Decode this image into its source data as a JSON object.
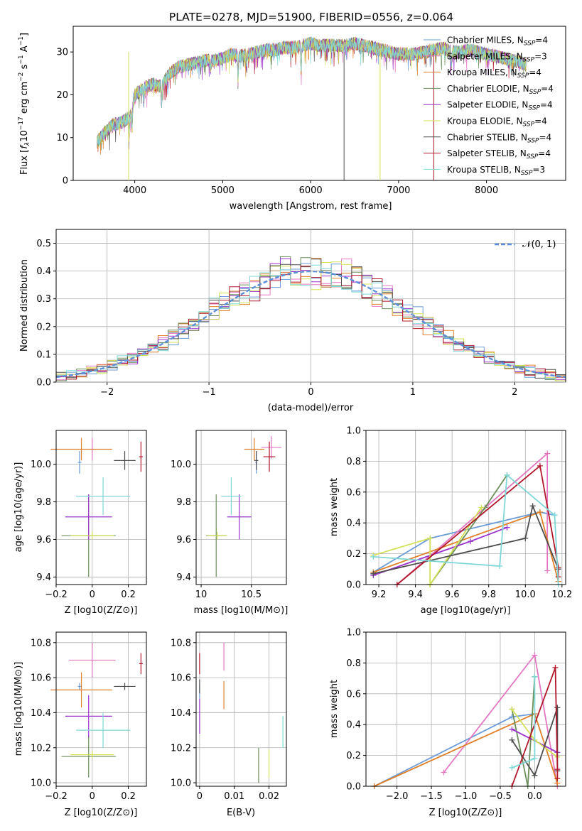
{
  "figure_title": "PLATE=0278, MJD=51900, FIBERID=0556, z=0.064",
  "colors": {
    "Chabrier MILES": "#6a9bd8",
    "Salpeter MILES": "#e377c2",
    "Kroupa MILES": "#e0802a",
    "Chabrier ELODIE": "#6b8e5a",
    "Salpeter ELODIE": "#9932cc",
    "Kroupa ELODIE": "#d4e157",
    "Chabrier STELIB": "#4d4d4d",
    "Salpeter STELIB": "#b2182b",
    "Kroupa STELIB": "#7fd7d7"
  },
  "chart_data": [
    {
      "id": "spectrum",
      "type": "line",
      "title": "PLATE=0278, MJD=51900, FIBERID=0556, z=0.064",
      "xlabel": "wavelength [Angstrom, rest frame]",
      "ylabel": "Flux [f_λ10^-17 erg cm^-2 s^-1 A^-1]",
      "xlim": [
        3300,
        8900
      ],
      "ylim": [
        0,
        36
      ],
      "xticks": [
        4000,
        5000,
        6000,
        7000,
        8000
      ],
      "yticks": [
        0,
        10,
        20,
        30
      ],
      "grid": false,
      "legend_position": "right",
      "legend": [
        {
          "name": "Chabrier MILES",
          "nssp": "4"
        },
        {
          "name": "Salpeter MILES",
          "nssp": "3"
        },
        {
          "name": "Kroupa MILES",
          "nssp": "4"
        },
        {
          "name": "Chabrier ELODIE",
          "nssp": "4"
        },
        {
          "name": "Salpeter ELODIE",
          "nssp": "4"
        },
        {
          "name": "Kroupa ELODIE",
          "nssp": "4"
        },
        {
          "name": "Chabrier STELIB",
          "nssp": "4"
        },
        {
          "name": "Salpeter STELIB",
          "nssp": "4"
        },
        {
          "name": "Kroupa STELIB",
          "nssp": "3"
        }
      ],
      "continuum": [
        [
          3570,
          9
        ],
        [
          3650,
          11
        ],
        [
          3750,
          13
        ],
        [
          3850,
          13.5
        ],
        [
          3950,
          15
        ],
        [
          4000,
          20
        ],
        [
          4100,
          21.5
        ],
        [
          4200,
          22.5
        ],
        [
          4300,
          22
        ],
        [
          4400,
          25
        ],
        [
          4500,
          26.5
        ],
        [
          4600,
          27
        ],
        [
          4700,
          27.5
        ],
        [
          4800,
          28
        ],
        [
          4900,
          28
        ],
        [
          5000,
          28.5
        ],
        [
          5100,
          29.5
        ],
        [
          5200,
          29
        ],
        [
          5300,
          29.5
        ],
        [
          5400,
          30
        ],
        [
          5500,
          30.5
        ],
        [
          5600,
          30.5
        ],
        [
          5700,
          31
        ],
        [
          5800,
          31
        ],
        [
          5900,
          31.5
        ],
        [
          6000,
          32
        ],
        [
          6100,
          31.5
        ],
        [
          6200,
          31.5
        ],
        [
          6300,
          31.5
        ],
        [
          6400,
          31.5
        ],
        [
          6500,
          32
        ],
        [
          6600,
          31.5
        ],
        [
          6700,
          31
        ],
        [
          6800,
          30.5
        ],
        [
          6900,
          30
        ],
        [
          7000,
          29.5
        ],
        [
          7100,
          29.5
        ],
        [
          7200,
          29.5
        ],
        [
          7300,
          30
        ],
        [
          7400,
          30.5
        ],
        [
          7500,
          31
        ],
        [
          7600,
          30
        ],
        [
          7700,
          30
        ],
        [
          7800,
          30.5
        ],
        [
          7900,
          30
        ],
        [
          8000,
          29.5
        ],
        [
          8100,
          29
        ],
        [
          8200,
          28.5
        ],
        [
          8300,
          28
        ],
        [
          8400,
          27.5
        ],
        [
          8450,
          27
        ]
      ],
      "absorption_lines": [
        [
          3934,
          -5
        ],
        [
          3969,
          -5
        ],
        [
          4102,
          -3
        ],
        [
          4305,
          -4
        ],
        [
          4861,
          -2
        ],
        [
          5175,
          -5
        ],
        [
          5270,
          -3
        ],
        [
          5892,
          -6
        ],
        [
          6563,
          -1
        ],
        [
          7600,
          -3
        ]
      ],
      "spikes": [
        {
          "x": 3930,
          "series": "Kroupa ELODIE"
        },
        {
          "x": 6380,
          "series": "Chabrier STELIB"
        },
        {
          "x": 6790,
          "series": "Kroupa ELODIE"
        },
        {
          "x": 7400,
          "series": "Salpeter STELIB"
        }
      ]
    },
    {
      "id": "residual_hist",
      "type": "bar",
      "xlabel": "(data-model)/error",
      "ylabel": "Normed distribution",
      "xlim": [
        -2.5,
        2.5
      ],
      "ylim": [
        0,
        0.55
      ],
      "xticks": [
        -2,
        -1,
        0,
        1,
        2
      ],
      "yticks": [
        0.0,
        0.1,
        0.2,
        0.3,
        0.4,
        0.5
      ],
      "grid": true,
      "legend_position": "top-right",
      "gaussian_label": "𝒩(0, 1)",
      "gaussian_color": "#5b8fd9",
      "bin_width": 0.1
    },
    {
      "id": "Z_age",
      "type": "scatter",
      "xlabel": "Z [log10(Z/Z⊙)]",
      "ylabel": "age [log10(age/yr)]",
      "xlim": [
        -0.2,
        0.3
      ],
      "ylim": [
        9.36,
        10.18
      ],
      "xticks": [
        -0.2,
        0.0,
        0.2
      ],
      "yticks": [
        9.4,
        9.6,
        9.8,
        10.0
      ],
      "grid": true,
      "points": [
        {
          "series": "Chabrier MILES",
          "x": -0.07,
          "y": 10.01,
          "xerr": 0.01,
          "yerr": 0.06
        },
        {
          "series": "Salpeter MILES",
          "x": 0.0,
          "y": 10.08,
          "xerr": 0.01,
          "yerr": 0.06
        },
        {
          "series": "Kroupa MILES",
          "x": -0.06,
          "y": 10.08,
          "xerr": 0.17,
          "yerr": 0.06
        },
        {
          "series": "Chabrier ELODIE",
          "x": -0.02,
          "y": 9.62,
          "xerr": 0.15,
          "yerr": 0.22
        },
        {
          "series": "Salpeter ELODIE",
          "x": -0.02,
          "y": 9.72,
          "xerr": 0.13,
          "yerr": 0.12
        },
        {
          "series": "Kroupa ELODIE",
          "x": 0.0,
          "y": 9.62,
          "xerr": 0.12,
          "yerr": 0.02
        },
        {
          "series": "Chabrier STELIB",
          "x": 0.18,
          "y": 10.02,
          "xerr": 0.06,
          "yerr": 0.05
        },
        {
          "series": "Salpeter STELIB",
          "x": 0.27,
          "y": 10.04,
          "xerr": 0.01,
          "yerr": 0.08
        },
        {
          "series": "Kroupa STELIB",
          "x": 0.06,
          "y": 9.83,
          "xerr": 0.15,
          "yerr": 0.1
        }
      ]
    },
    {
      "id": "mass_age",
      "type": "scatter",
      "xlabel": "mass [log10(M/M⊙)]",
      "ylabel": "",
      "xlim": [
        9.95,
        10.85
      ],
      "ylim": [
        9.36,
        10.18
      ],
      "xticks": [
        10.0,
        10.5
      ],
      "yticks": [
        9.4,
        9.6,
        9.8,
        10.0
      ],
      "grid": true,
      "points": [
        {
          "series": "Chabrier MILES",
          "x": 10.55,
          "y": 10.01,
          "xerr": 0.01,
          "yerr": 0.06
        },
        {
          "series": "Salpeter MILES",
          "x": 10.7,
          "y": 10.09,
          "xerr": 0.1,
          "yerr": 0.06
        },
        {
          "series": "Kroupa MILES",
          "x": 10.53,
          "y": 10.08,
          "xerr": 0.1,
          "yerr": 0.06
        },
        {
          "series": "Chabrier ELODIE",
          "x": 10.15,
          "y": 9.62,
          "xerr": 0.1,
          "yerr": 0.22
        },
        {
          "series": "Salpeter ELODIE",
          "x": 10.38,
          "y": 9.72,
          "xerr": 0.12,
          "yerr": 0.12
        },
        {
          "series": "Kroupa ELODIE",
          "x": 10.16,
          "y": 9.62,
          "xerr": 0.1,
          "yerr": 0.02
        },
        {
          "series": "Chabrier STELIB",
          "x": 10.55,
          "y": 10.02,
          "xerr": 0.02,
          "yerr": 0.05
        },
        {
          "series": "Salpeter STELIB",
          "x": 10.68,
          "y": 10.04,
          "xerr": 0.06,
          "yerr": 0.08
        },
        {
          "series": "Kroupa STELIB",
          "x": 10.3,
          "y": 9.83,
          "xerr": 0.1,
          "yerr": 0.1
        }
      ]
    },
    {
      "id": "age_weight",
      "type": "line",
      "xlabel": "age [log10(age/yr)]",
      "ylabel": "mass weight",
      "xlim": [
        9.13,
        10.22
      ],
      "ylim": [
        0,
        1.0
      ],
      "xticks": [
        9.2,
        9.4,
        9.6,
        9.8,
        10.0,
        10.2
      ],
      "yticks": [
        0.0,
        0.2,
        0.4,
        0.6,
        0.8,
        1.0
      ],
      "grid": true,
      "series": [
        {
          "name": "Chabrier MILES",
          "x": [
            9.17,
            9.48,
            10.08,
            10.16
          ],
          "y": [
            0.08,
            0.3,
            0.47,
            0.45
          ]
        },
        {
          "name": "Salpeter MILES",
          "x": [
            9.3,
            10.12,
            10.12
          ],
          "y": [
            0.0,
            0.85,
            0.09
          ]
        },
        {
          "name": "Kroupa MILES",
          "x": [
            9.17,
            10.08,
            10.18
          ],
          "y": [
            0.08,
            0.47,
            0.02
          ]
        },
        {
          "name": "Chabrier ELODIE",
          "x": [
            9.48,
            9.78,
            9.9
          ],
          "y": [
            0.0,
            0.5,
            0.71
          ]
        },
        {
          "name": "Salpeter ELODIE",
          "x": [
            9.17,
            9.7,
            9.9
          ],
          "y": [
            0.06,
            0.28,
            0.37
          ]
        },
        {
          "name": "Kroupa ELODIE",
          "x": [
            9.17,
            9.48,
            9.48,
            9.76
          ],
          "y": [
            0.19,
            0.3,
            0.0,
            0.5
          ]
        },
        {
          "name": "Chabrier STELIB",
          "x": [
            9.17,
            10.0,
            10.04,
            10.18
          ],
          "y": [
            0.07,
            0.3,
            0.51,
            0.1
          ]
        },
        {
          "name": "Salpeter STELIB",
          "x": [
            9.3,
            10.08,
            10.18,
            10.18
          ],
          "y": [
            0.0,
            0.77,
            0.11,
            0.05
          ]
        },
        {
          "name": "Kroupa STELIB",
          "x": [
            9.17,
            9.86,
            9.9,
            10.16,
            10.18
          ],
          "y": [
            0.18,
            0.12,
            0.71,
            0.45,
            0.0
          ]
        }
      ]
    },
    {
      "id": "Z_mass",
      "type": "scatter",
      "xlabel": "Z [log10(Z/Z⊙)]",
      "ylabel": "mass [log10(M/M⊙)]",
      "xlim": [
        -0.2,
        0.3
      ],
      "ylim": [
        9.98,
        10.86
      ],
      "xticks": [
        -0.2,
        0.0,
        0.2
      ],
      "yticks": [
        10.0,
        10.2,
        10.4,
        10.6,
        10.8
      ],
      "grid": true,
      "points": [
        {
          "series": "Chabrier MILES",
          "x": -0.07,
          "y": 10.55,
          "xerr": 0.01,
          "yerr": 0.02
        },
        {
          "series": "Salpeter MILES",
          "x": 0.0,
          "y": 10.7,
          "xerr": 0.13,
          "yerr": 0.1
        },
        {
          "series": "Kroupa MILES",
          "x": -0.06,
          "y": 10.53,
          "xerr": 0.17,
          "yerr": 0.1
        },
        {
          "series": "Chabrier ELODIE",
          "x": -0.02,
          "y": 10.15,
          "xerr": 0.15,
          "yerr": 0.12
        },
        {
          "series": "Salpeter ELODIE",
          "x": -0.02,
          "y": 10.38,
          "xerr": 0.13,
          "yerr": 0.12
        },
        {
          "series": "Kroupa ELODIE",
          "x": 0.0,
          "y": 10.16,
          "xerr": 0.12,
          "yerr": 0.02
        },
        {
          "series": "Chabrier STELIB",
          "x": 0.18,
          "y": 10.55,
          "xerr": 0.06,
          "yerr": 0.02
        },
        {
          "series": "Salpeter STELIB",
          "x": 0.27,
          "y": 10.68,
          "xerr": 0.01,
          "yerr": 0.06
        },
        {
          "series": "Kroupa STELIB",
          "x": 0.06,
          "y": 10.3,
          "xerr": 0.15,
          "yerr": 0.1
        }
      ]
    },
    {
      "id": "ebv_mass",
      "type": "scatter",
      "xlabel": "E(B-V)",
      "ylabel": "",
      "xlim": [
        -0.001,
        0.025
      ],
      "ylim": [
        9.98,
        10.86
      ],
      "xticks": [
        0.0,
        0.01,
        0.02
      ],
      "yticks": [
        10.0,
        10.2,
        10.4,
        10.6,
        10.8
      ],
      "grid": true,
      "points": [
        {
          "series": "Chabrier MILES",
          "x": 0.0,
          "y": 10.52,
          "xerr": 0,
          "yerr": 0.04
        },
        {
          "series": "Salpeter MILES",
          "x": 0.007,
          "y": 10.72,
          "xerr": 0,
          "yerr": 0.08
        },
        {
          "series": "Kroupa MILES",
          "x": 0.007,
          "y": 10.5,
          "xerr": 0,
          "yerr": 0.08
        },
        {
          "series": "Chabrier ELODIE",
          "x": 0.017,
          "y": 10.1,
          "xerr": 0,
          "yerr": 0.1
        },
        {
          "series": "Salpeter ELODIE",
          "x": 0.0,
          "y": 10.38,
          "xerr": 0,
          "yerr": 0.1
        },
        {
          "series": "Kroupa ELODIE",
          "x": 0.02,
          "y": 10.11,
          "xerr": 0,
          "yerr": 0.08
        },
        {
          "series": "Chabrier STELIB",
          "x": 0.0,
          "y": 10.55,
          "xerr": 0,
          "yerr": 0.04
        },
        {
          "series": "Salpeter STELIB",
          "x": 0.0,
          "y": 10.68,
          "xerr": 0,
          "yerr": 0.06
        },
        {
          "series": "Kroupa STELIB",
          "x": 0.024,
          "y": 10.29,
          "xerr": 0,
          "yerr": 0.09
        }
      ]
    },
    {
      "id": "Z_weight",
      "type": "line",
      "xlabel": "Z [log10(Z/Z⊙)]",
      "ylabel": "mass weight",
      "xlim": [
        -2.45,
        0.45
      ],
      "ylim": [
        0,
        1.0
      ],
      "xticks": [
        -2.0,
        -1.5,
        -1.0,
        -0.5,
        0.0
      ],
      "yticks": [
        0.0,
        0.2,
        0.4,
        0.6,
        0.8,
        1.0
      ],
      "grid": true,
      "series": [
        {
          "name": "Chabrier MILES",
          "x": [
            -2.33,
            -0.33,
            0.0
          ],
          "y": [
            0.0,
            0.45,
            0.47
          ]
        },
        {
          "name": "Salpeter MILES",
          "x": [
            -1.32,
            0.0,
            0.33
          ],
          "y": [
            0.09,
            0.85,
            0.0
          ]
        },
        {
          "name": "Kroupa MILES",
          "x": [
            -2.33,
            0.0,
            0.33
          ],
          "y": [
            0.0,
            0.47,
            0.02
          ]
        },
        {
          "name": "Chabrier ELODIE",
          "x": [
            -0.33,
            -0.1,
            0.0
          ],
          "y": [
            0.5,
            0.0,
            0.71
          ]
        },
        {
          "name": "Salpeter ELODIE",
          "x": [
            -0.33,
            0.33
          ],
          "y": [
            0.37,
            0.22
          ]
        },
        {
          "name": "Kroupa ELODIE",
          "x": [
            -0.33,
            0.0,
            0.33
          ],
          "y": [
            0.5,
            0.3,
            0.19
          ]
        },
        {
          "name": "Chabrier STELIB",
          "x": [
            -0.33,
            0.0,
            0.33,
            0.33
          ],
          "y": [
            0.3,
            0.07,
            0.51,
            0.1
          ]
        },
        {
          "name": "Salpeter STELIB",
          "x": [
            -0.33,
            0.3,
            0.33,
            0.33
          ],
          "y": [
            0.0,
            0.77,
            0.11,
            0.05
          ]
        },
        {
          "name": "Kroupa STELIB",
          "x": [
            -0.33,
            0.0,
            0.0
          ],
          "y": [
            0.12,
            0.18,
            0.71
          ]
        }
      ]
    }
  ]
}
